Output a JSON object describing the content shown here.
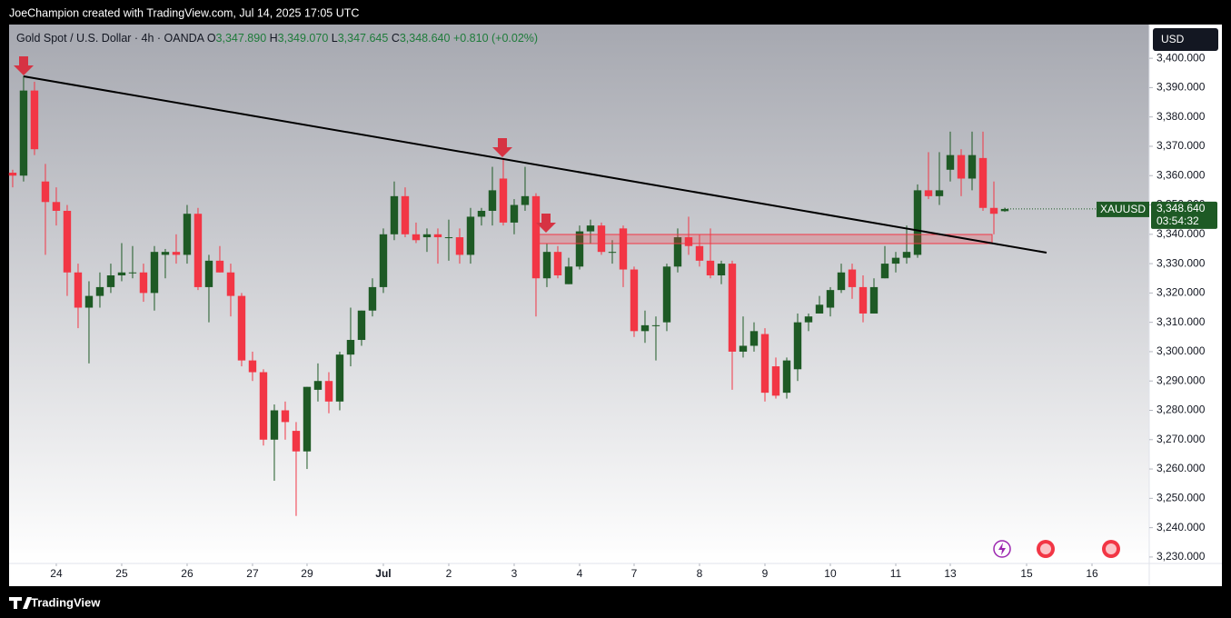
{
  "header": {
    "credit": "JoeChampion created with TradingView.com, Jul 14, 2025 17:05 UTC"
  },
  "footer": {
    "brand": "TradingView"
  },
  "chart_data": {
    "type": "candlestick",
    "title": "Gold Spot / U.S. Dollar · 4h · OANDA",
    "ohlc_legend": [
      {
        "key": "O",
        "text": "3,347.890"
      },
      {
        "key": "H",
        "text": "3,349.070"
      },
      {
        "key": "L",
        "text": "3,347.645"
      },
      {
        "key": "C",
        "text": "3,348.640"
      }
    ],
    "change": "+0.810 (+0.02%)",
    "currency": "USD",
    "symbol": "XAUUSD",
    "last_price": {
      "value": 3348.64,
      "label": "3,348.640"
    },
    "countdown": "03:54:32",
    "up_color": "#1e5a25",
    "down_color": "#f23645",
    "x": [
      0,
      1,
      2,
      3,
      4,
      5,
      6,
      7,
      8,
      9,
      10,
      11,
      12,
      13,
      14,
      15,
      16,
      17,
      18,
      19,
      20,
      21,
      22,
      23,
      24,
      25,
      26,
      27,
      28,
      29,
      30,
      31,
      32,
      33,
      34,
      35,
      36,
      37,
      38,
      39,
      40,
      41,
      42,
      43,
      44,
      45,
      46,
      47,
      48,
      49,
      50,
      51,
      52,
      53,
      54,
      55,
      56,
      57,
      58,
      59,
      60,
      61,
      62,
      63,
      64,
      65,
      66,
      67,
      68,
      69,
      70,
      71,
      72,
      73,
      74,
      75,
      76,
      77,
      78,
      79,
      80,
      81,
      82,
      83,
      84,
      85,
      86,
      87,
      88,
      89,
      90,
      91
    ],
    "open": [
      3361,
      3360,
      3389,
      3358,
      3351,
      3348,
      3327,
      3315,
      3319,
      3322,
      3326,
      3327,
      3327,
      3320,
      3333,
      3334,
      3333,
      3347,
      3322,
      3331,
      3327,
      3319,
      3297,
      3293,
      3270,
      3280,
      3273,
      3266,
      3287,
      3290,
      3283,
      3299,
      3304,
      3314,
      3322,
      3340,
      3353,
      3340,
      3339,
      3340,
      3339,
      3339,
      3333,
      3346,
      3348,
      3359,
      3344,
      3350,
      3353,
      3325,
      3334,
      3323,
      3329,
      3341,
      3343,
      3334,
      3342,
      3328,
      3307,
      3309,
      3310,
      3329,
      3339,
      3336,
      3331,
      3326,
      3330,
      3300,
      3302,
      3306,
      3295,
      3286,
      3294,
      3310,
      3313,
      3315,
      3321,
      3328,
      3322,
      3313,
      3325,
      3330,
      3332,
      3333,
      3355,
      3353,
      3362,
      3367,
      3359,
      3366,
      3349,
      3347.89
    ],
    "high": [
      3362,
      3394,
      3392,
      3364,
      3356,
      3350,
      3330,
      3324,
      3327,
      3330,
      3337,
      3336,
      3330,
      3336,
      3335,
      3340,
      3350,
      3349,
      3333,
      3336,
      3330,
      3320,
      3300,
      3294,
      3282,
      3283,
      3276,
      3288,
      3296,
      3293,
      3300,
      3315,
      3314,
      3325,
      3342,
      3358,
      3356,
      3344,
      3342,
      3342,
      3345,
      3342,
      3349,
      3349,
      3363,
      3366,
      3352,
      3363,
      3354,
      3337,
      3336,
      3332,
      3343,
      3345,
      3344,
      3338,
      3343,
      3329,
      3314,
      3312,
      3330,
      3342,
      3346,
      3340,
      3342,
      3331,
      3331,
      3312,
      3310,
      3308,
      3298,
      3298,
      3313,
      3313,
      3319,
      3322,
      3330,
      3330,
      3326,
      3325,
      3336,
      3334,
      3343,
      3357,
      3368,
      3368,
      3375,
      3369,
      3375,
      3375,
      3358,
      3349.07
    ],
    "low": [
      3356,
      3358,
      3367,
      3333,
      3343,
      3319,
      3308,
      3296,
      3315,
      3320,
      3324,
      3325,
      3317,
      3314,
      3325,
      3330,
      3330,
      3321,
      3310,
      3327,
      3312,
      3295,
      3290,
      3268,
      3256,
      3270,
      3244,
      3260,
      3283,
      3279,
      3280,
      3295,
      3302,
      3312,
      3320,
      3338,
      3339,
      3337,
      3334,
      3330,
      3331,
      3330,
      3330,
      3343,
      3343,
      3343,
      3340,
      3348,
      3312,
      3322,
      3325,
      3323,
      3328,
      3337,
      3333,
      3330,
      3322,
      3305,
      3303,
      3297,
      3307,
      3327,
      3333,
      3329,
      3325,
      3323,
      3287,
      3298,
      3300,
      3283,
      3284,
      3284,
      3290,
      3307,
      3313,
      3312,
      3320,
      3318,
      3310,
      3313,
      3325,
      3327,
      3330,
      3332,
      3352,
      3350,
      3358,
      3353,
      3355,
      3348,
      3340,
      3347.645
    ],
    "close": [
      3360,
      3389,
      3369,
      3351,
      3348,
      3327,
      3315,
      3319,
      3322,
      3326,
      3327,
      3327,
      3320,
      3334,
      3334,
      3333,
      3347,
      3322,
      3331,
      3327,
      3319,
      3297,
      3293,
      3270,
      3280,
      3276,
      3266,
      3288,
      3290,
      3283,
      3299,
      3304,
      3314,
      3322,
      3340,
      3353,
      3340,
      3338,
      3340,
      3339,
      3339,
      3333,
      3346,
      3348,
      3355,
      3344,
      3350,
      3353,
      3325,
      3334,
      3326,
      3329,
      3341,
      3343,
      3334,
      3334,
      3328,
      3307,
      3309,
      3309,
      3329,
      3339,
      3336,
      3331,
      3326,
      3330,
      3300,
      3302,
      3307,
      3286,
      3285,
      3297,
      3310,
      3312,
      3316,
      3321,
      3327,
      3322,
      3313,
      3322,
      3330,
      3332,
      3334,
      3355,
      3353,
      3355,
      3367,
      3359,
      3367,
      3349,
      3347,
      3348.64
    ],
    "xlim": [
      -0.33,
      104.25
    ],
    "xticks": [
      {
        "value": 4,
        "label": "24"
      },
      {
        "value": 10,
        "label": "25"
      },
      {
        "value": 16,
        "label": "26"
      },
      {
        "value": 22,
        "label": "27"
      },
      {
        "value": 27,
        "label": "29"
      },
      {
        "value": 34,
        "label": "Jul"
      },
      {
        "value": 40,
        "label": "2"
      },
      {
        "value": 46,
        "label": "3"
      },
      {
        "value": 52,
        "label": "4"
      },
      {
        "value": 57,
        "label": "7"
      },
      {
        "value": 63,
        "label": "8"
      },
      {
        "value": 69,
        "label": "9"
      },
      {
        "value": 75,
        "label": "10"
      },
      {
        "value": 81,
        "label": "11"
      },
      {
        "value": 86,
        "label": "13"
      },
      {
        "value": 93,
        "label": "15"
      },
      {
        "value": 99,
        "label": "16"
      }
    ],
    "ylim": [
      3227.8,
      3411.5
    ],
    "yticks": [
      {
        "value": 3400,
        "label": "3,400.000"
      },
      {
        "value": 3390,
        "label": "3,390.000"
      },
      {
        "value": 3380,
        "label": "3,380.000"
      },
      {
        "value": 3370,
        "label": "3,370.000"
      },
      {
        "value": 3360,
        "label": "3,360.000"
      },
      {
        "value": 3350,
        "label": "3,350.000"
      },
      {
        "value": 3340,
        "label": "3,340.000"
      },
      {
        "value": 3330,
        "label": "3,330.000"
      },
      {
        "value": 3320,
        "label": "3,320.000"
      },
      {
        "value": 3310,
        "label": "3,310.000"
      },
      {
        "value": 3300,
        "label": "3,300.000"
      },
      {
        "value": 3290,
        "label": "3,290.000"
      },
      {
        "value": 3280,
        "label": "3,280.000"
      },
      {
        "value": 3270,
        "label": "3,270.000"
      },
      {
        "value": 3260,
        "label": "3,260.000"
      },
      {
        "value": 3250,
        "label": "3,250.000"
      },
      {
        "value": 3240,
        "label": "3,240.000"
      },
      {
        "value": 3230,
        "label": "3,230.000"
      }
    ],
    "grid": false
  }
}
